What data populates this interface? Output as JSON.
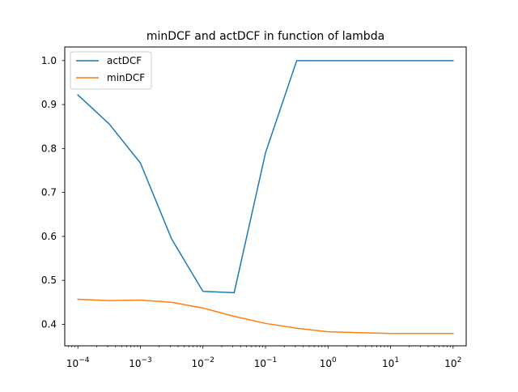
{
  "chart_data": {
    "type": "line",
    "title": "minDCF and actDCF in function of lambda",
    "xlabel": "",
    "ylabel": "",
    "xscale": "log",
    "x": [
      0.0001,
      0.000316,
      0.001,
      0.00316,
      0.01,
      0.0316,
      0.1,
      0.316,
      1,
      3.16,
      10,
      31.6,
      100
    ],
    "xlim": [
      6.17e-05,
      162
    ],
    "ylim": [
      0.351,
      1.031
    ],
    "xticks": [
      {
        "value": 0.0001,
        "base": "10",
        "exp": "−4"
      },
      {
        "value": 0.001,
        "base": "10",
        "exp": "−3"
      },
      {
        "value": 0.01,
        "base": "10",
        "exp": "−2"
      },
      {
        "value": 0.1,
        "base": "10",
        "exp": "−1"
      },
      {
        "value": 1,
        "base": "10",
        "exp": "0"
      },
      {
        "value": 10,
        "base": "10",
        "exp": "1"
      },
      {
        "value": 100,
        "base": "10",
        "exp": "2"
      }
    ],
    "yticks": [
      {
        "value": 0.4,
        "label": "0.4"
      },
      {
        "value": 0.5,
        "label": "0.5"
      },
      {
        "value": 0.6,
        "label": "0.6"
      },
      {
        "value": 0.7,
        "label": "0.7"
      },
      {
        "value": 0.8,
        "label": "0.8"
      },
      {
        "value": 0.9,
        "label": "0.9"
      },
      {
        "value": 1.0,
        "label": "1.0"
      }
    ],
    "grid": false,
    "legend_position": "top-left",
    "series": [
      {
        "name": "actDCF",
        "color": "#1f77b4",
        "values": [
          0.922,
          0.856,
          0.767,
          0.594,
          0.475,
          0.472,
          0.79,
          1.0,
          1.0,
          1.0,
          1.0,
          1.0,
          1.0
        ]
      },
      {
        "name": "minDCF",
        "color": "#ff7f0e",
        "values": [
          0.457,
          0.454,
          0.455,
          0.45,
          0.437,
          0.418,
          0.402,
          0.391,
          0.383,
          0.381,
          0.379,
          0.379,
          0.379
        ]
      }
    ]
  }
}
